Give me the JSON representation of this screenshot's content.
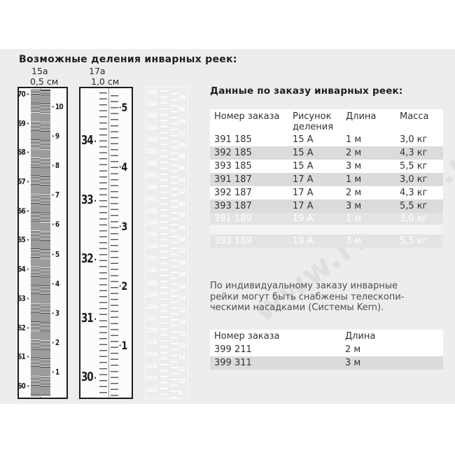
{
  "page": {
    "title": "Возможные деления инварных реек:",
    "watermark": "www.rusgeo.ru"
  },
  "rulers": {
    "r15a": {
      "label": "15а",
      "division": "0,5 см",
      "left_numbers": [
        "70",
        "69",
        "68",
        "67",
        "66",
        "65",
        "64",
        "63",
        "62",
        "61",
        "60"
      ],
      "right_numbers": [
        "10",
        "9",
        "8",
        "7",
        "6",
        "5",
        "4",
        "3",
        "2",
        "1"
      ]
    },
    "r17a": {
      "label": "17а",
      "division": "1,0 см",
      "left_numbers": [
        "34",
        "33",
        "32",
        "31",
        "30"
      ],
      "right_numbers": [
        "5",
        "4",
        "3",
        "2",
        "1"
      ]
    },
    "ghost": {
      "left_numbers": [
        "360",
        "358",
        "356",
        "354",
        "352",
        "350",
        "348",
        "346",
        "344",
        "342",
        "340",
        "338",
        "336",
        "334",
        "332",
        "330",
        "328",
        "326",
        "324",
        "322",
        "320",
        "318",
        "316",
        "314",
        "312",
        "310"
      ],
      "right_numbers": [
        "58",
        "56",
        "54",
        "52",
        "50",
        "48",
        "46",
        "44",
        "42",
        "40",
        "38",
        "36",
        "34",
        "32",
        "30",
        "28",
        "26",
        "24",
        "22",
        "20",
        "18",
        "16",
        "14",
        "12",
        "10",
        "8"
      ]
    }
  },
  "order_section": {
    "title": "Данные по заказу инварных реек:",
    "table1": {
      "headers": [
        "Номер заказа",
        "Рисунок\nделения",
        "Длина",
        "Масса"
      ],
      "rows": [
        [
          "391 185",
          "15 А",
          "1 м",
          "3,0 кг"
        ],
        [
          "392 185",
          "15 А",
          "2 м",
          "4,3 кг"
        ],
        [
          "393 185",
          "15 А",
          "3 м",
          "5,5 кг"
        ],
        [
          "391 187",
          "17 А",
          "1 м",
          "3,0 кг"
        ],
        [
          "392 187",
          "17 А",
          "2 м",
          "4,3 кг"
        ],
        [
          "393 187",
          "17 А",
          "3 м",
          "5,5 кг"
        ]
      ],
      "ghost_rows": [
        [
          "391 189",
          "19 А",
          "1 м",
          "3,0 кг"
        ],
        [
          "393 189",
          "19 А",
          "3 м",
          "5,5 кг"
        ]
      ]
    },
    "note": "По индивидуальному заказу инварные\nрейки могут быть снабжены телескопи-\nческими насадками (Системы Kern).",
    "table2": {
      "headers": [
        "Номер заказа",
        "Длина"
      ],
      "rows": [
        [
          "399 211",
          "2 м"
        ],
        [
          "399 311",
          "3 м"
        ]
      ]
    }
  },
  "colors": {
    "accent_orange": "#f15a23",
    "header_text": "#8b2004",
    "row_alt_gray": "#dbdbdb",
    "panel_bg": "#ededed"
  }
}
